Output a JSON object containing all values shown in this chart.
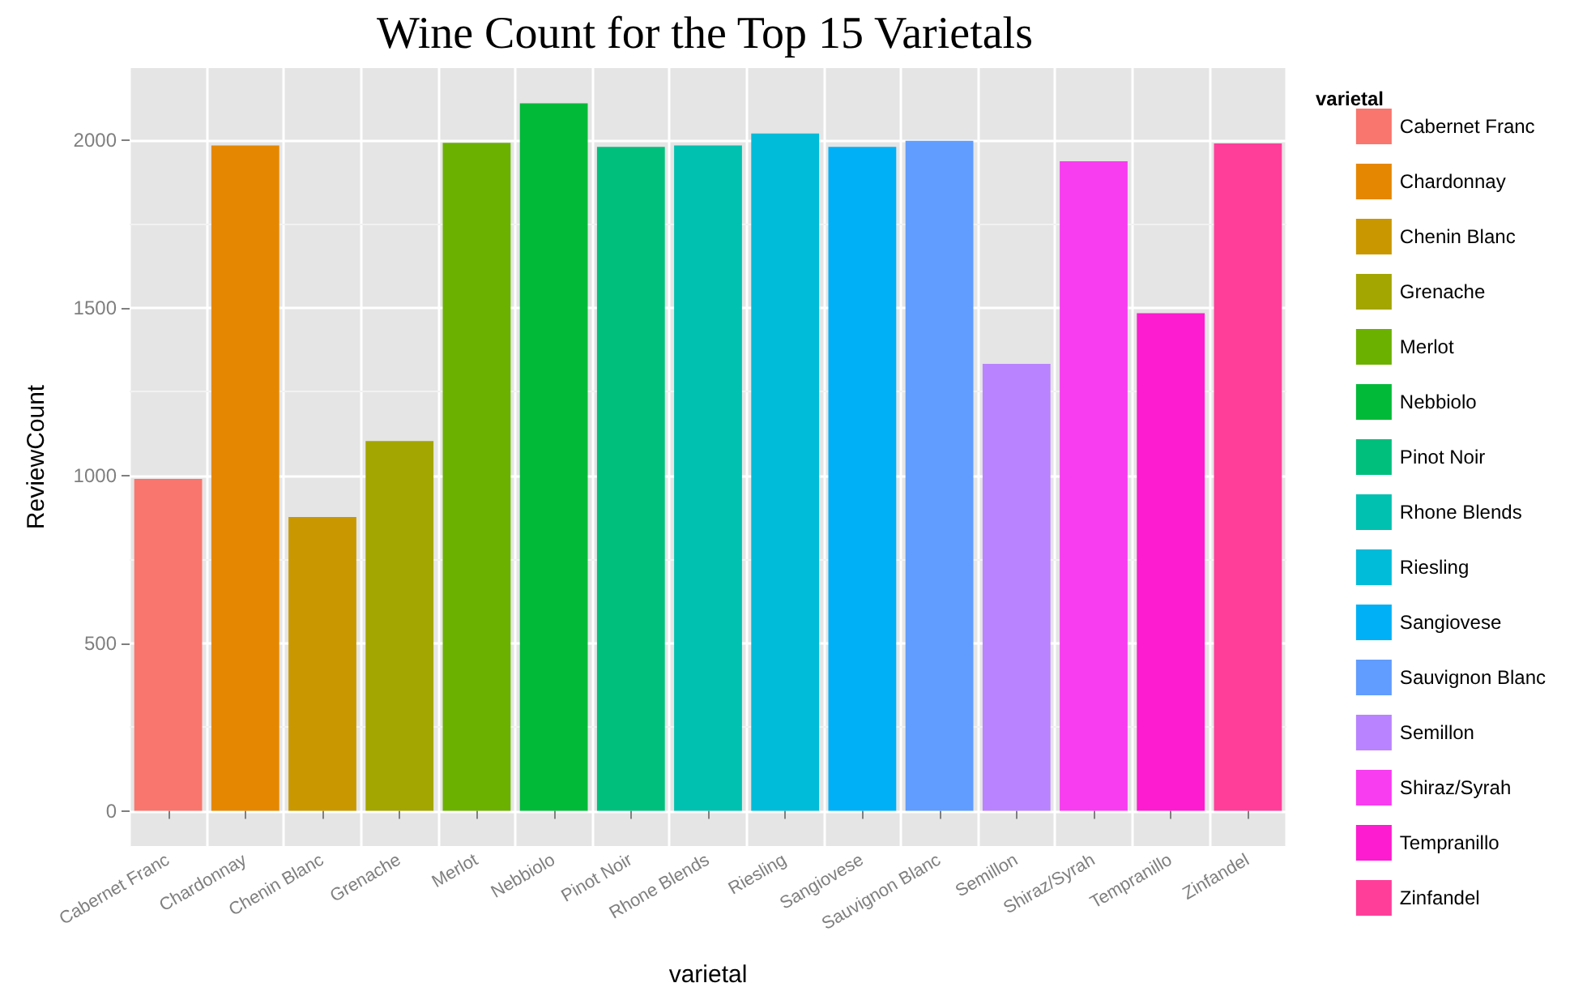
{
  "chart_data": {
    "type": "bar",
    "title": "Wine Count for the Top 15 Varietals",
    "xlabel": "varietal",
    "ylabel": "ReviewCount",
    "legend_title": "varietal",
    "categories": [
      "Cabernet Franc",
      "Chardonnay",
      "Chenin Blanc",
      "Grenache",
      "Merlot",
      "Nebbiolo",
      "Pinot Noir",
      "Rhone Blends",
      "Riesling",
      "Sangiovese",
      "Sauvignon Blanc",
      "Semillon",
      "Shiraz/Syrah",
      "Tempranillo",
      "Zinfandel"
    ],
    "series": [
      {
        "name": "Cabernet Franc",
        "color": "#f8766d",
        "values": [
          990,
          null,
          null,
          null,
          null,
          null,
          null,
          null,
          null,
          null,
          null,
          null,
          null,
          null,
          null
        ]
      },
      {
        "name": "Chardonnay",
        "color": "#e58700",
        "values": [
          null,
          1984,
          null,
          null,
          null,
          null,
          null,
          null,
          null,
          null,
          null,
          null,
          null,
          null,
          null
        ]
      },
      {
        "name": "Chenin Blanc",
        "color": "#c99800",
        "values": [
          null,
          null,
          876,
          null,
          null,
          null,
          null,
          null,
          null,
          null,
          null,
          null,
          null,
          null,
          null
        ]
      },
      {
        "name": "Grenache",
        "color": "#a3a500",
        "values": [
          null,
          null,
          null,
          1103,
          null,
          null,
          null,
          null,
          null,
          null,
          null,
          null,
          null,
          null,
          null
        ]
      },
      {
        "name": "Merlot",
        "color": "#6bb100",
        "values": [
          null,
          null,
          null,
          null,
          1992,
          null,
          null,
          null,
          null,
          null,
          null,
          null,
          null,
          null,
          null
        ]
      },
      {
        "name": "Nebbiolo",
        "color": "#00ba38",
        "values": [
          null,
          null,
          null,
          null,
          null,
          2110,
          null,
          null,
          null,
          null,
          null,
          null,
          null,
          null,
          null
        ]
      },
      {
        "name": "Pinot Noir",
        "color": "#00bf7d",
        "values": [
          null,
          null,
          null,
          null,
          null,
          null,
          1980,
          null,
          null,
          null,
          null,
          null,
          null,
          null,
          null
        ]
      },
      {
        "name": "Rhone Blends",
        "color": "#00c0af",
        "values": [
          null,
          null,
          null,
          null,
          null,
          null,
          null,
          1984,
          null,
          null,
          null,
          null,
          null,
          null,
          null
        ]
      },
      {
        "name": "Riesling",
        "color": "#00bcd8",
        "values": [
          null,
          null,
          null,
          null,
          null,
          null,
          null,
          null,
          2020,
          null,
          null,
          null,
          null,
          null,
          null
        ]
      },
      {
        "name": "Sangiovese",
        "color": "#00b0f6",
        "values": [
          null,
          null,
          null,
          null,
          null,
          null,
          null,
          null,
          null,
          1980,
          null,
          null,
          null,
          null,
          null
        ]
      },
      {
        "name": "Sauvignon Blanc",
        "color": "#619cff",
        "values": [
          null,
          null,
          null,
          null,
          null,
          null,
          null,
          null,
          null,
          null,
          1998,
          null,
          null,
          null,
          null
        ]
      },
      {
        "name": "Semillon",
        "color": "#b983ff",
        "values": [
          null,
          null,
          null,
          null,
          null,
          null,
          null,
          null,
          null,
          null,
          null,
          1333,
          null,
          null,
          null
        ]
      },
      {
        "name": "Shiraz/Syrah",
        "color": "#f83cf0",
        "values": [
          null,
          null,
          null,
          null,
          null,
          null,
          null,
          null,
          null,
          null,
          null,
          null,
          1937,
          null,
          null
        ]
      },
      {
        "name": "Tempranillo",
        "color": "#fd1ccf",
        "values": [
          null,
          null,
          null,
          null,
          null,
          null,
          null,
          null,
          null,
          null,
          null,
          null,
          null,
          1484,
          null
        ]
      },
      {
        "name": "Zinfandel",
        "color": "#ff3e9a",
        "values": [
          null,
          null,
          null,
          null,
          null,
          null,
          null,
          null,
          null,
          null,
          null,
          null,
          null,
          null,
          1990
        ]
      }
    ],
    "ylim": [
      -105,
      2215
    ],
    "yticks": [
      0,
      500,
      1000,
      1500,
      2000
    ],
    "grid": true,
    "legend": "right"
  }
}
